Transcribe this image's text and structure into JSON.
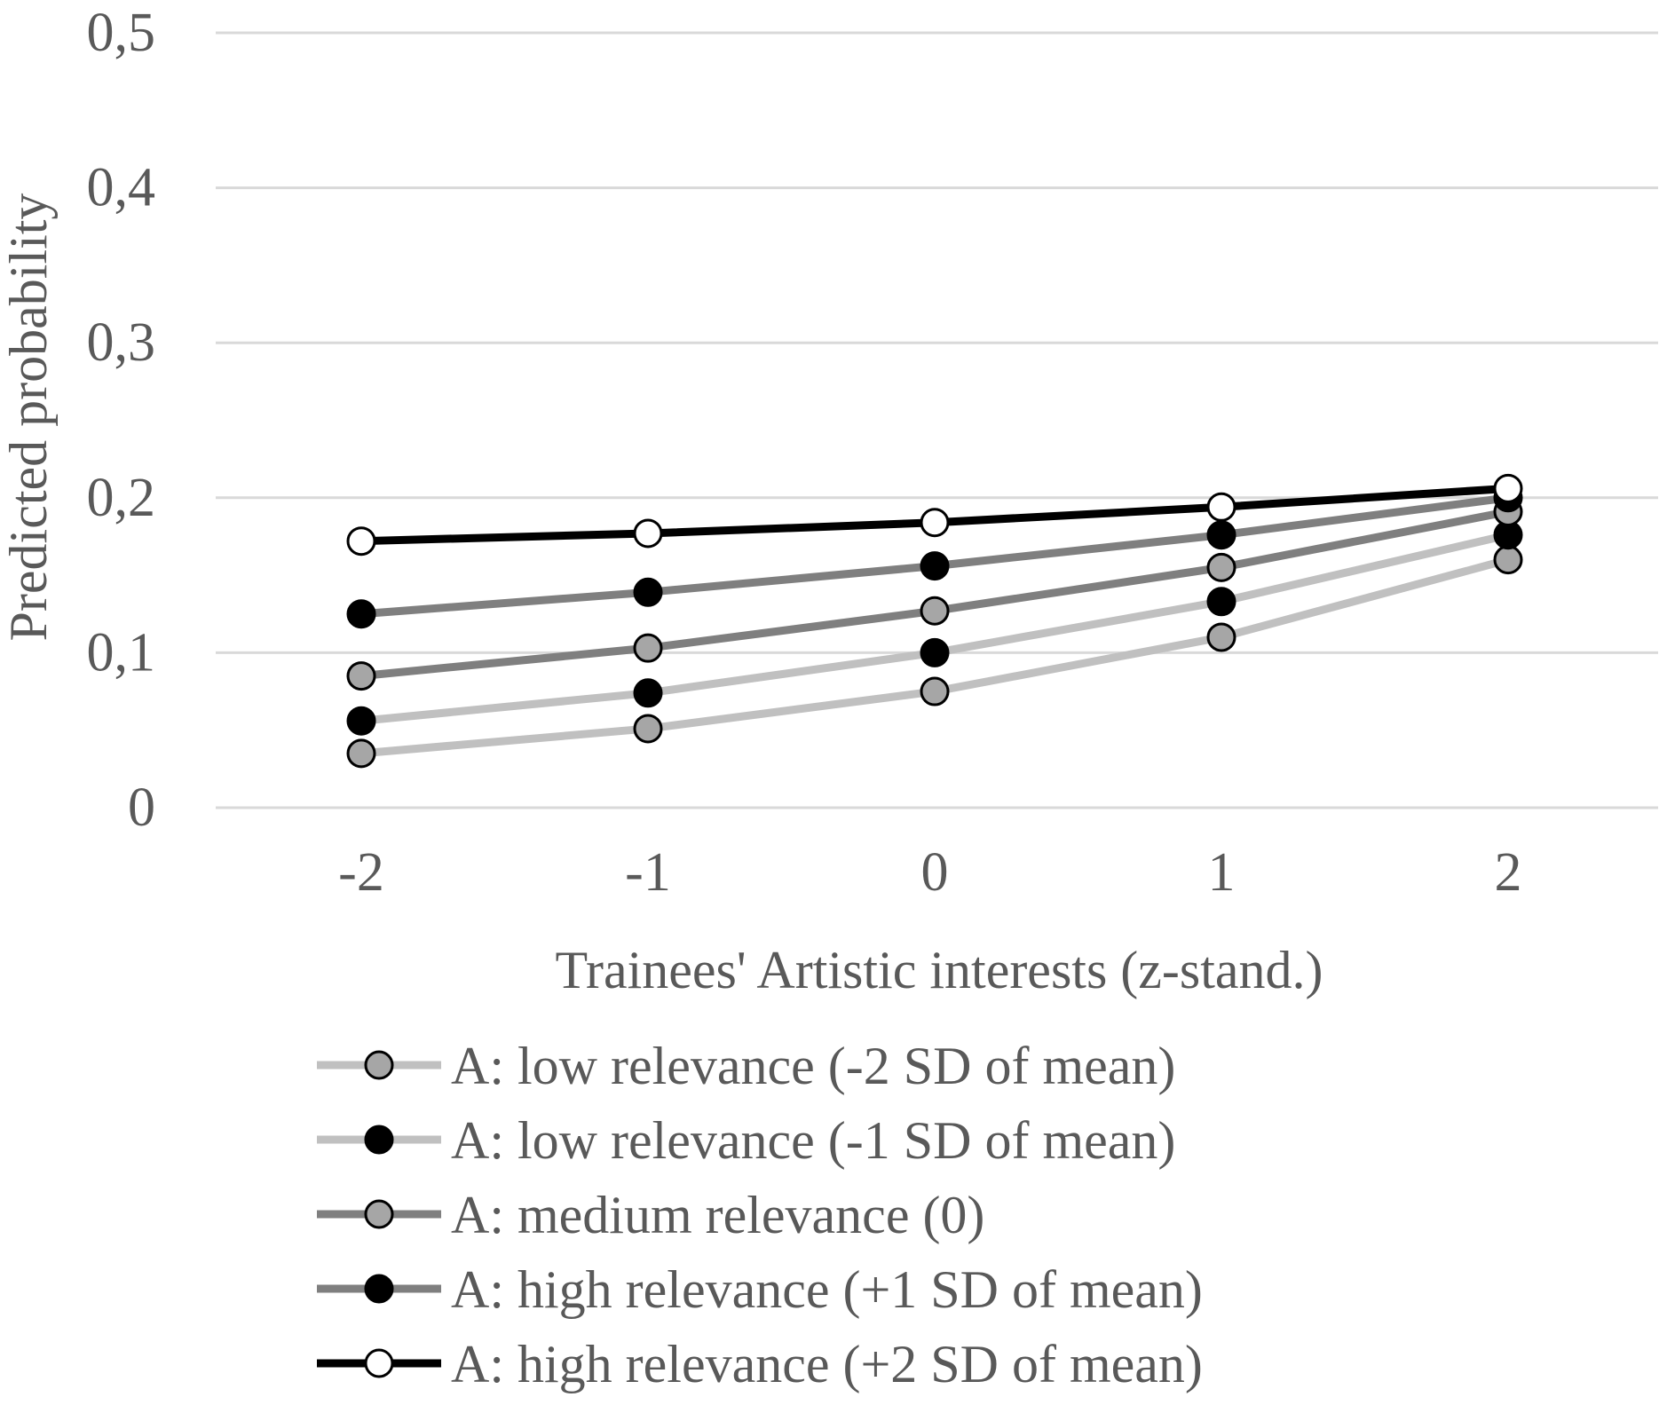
{
  "chart_data": {
    "type": "line",
    "title": "",
    "xlabel": "Trainees' Artistic interests (z-stand.)",
    "ylabel": "Predicted probability",
    "x": [
      "-2",
      "-1",
      "0",
      "1",
      "2"
    ],
    "y_ticks": [
      "0",
      "0,1",
      "0,2",
      "0,3",
      "0,4",
      "0,5"
    ],
    "ylim": [
      0,
      0.5
    ],
    "grid": true,
    "legend_position": "bottom",
    "series": [
      {
        "name": "A: low relevance (-2 SD of mean)",
        "values": [
          0.035,
          0.051,
          0.075,
          0.11,
          0.16
        ],
        "line_color": "#c0c0c0",
        "marker_color": "#a6a6a6"
      },
      {
        "name": "A: low relevance (-1 SD of mean)",
        "values": [
          0.056,
          0.074,
          0.1,
          0.133,
          0.176
        ],
        "line_color": "#c0c0c0",
        "marker_color": "#000000"
      },
      {
        "name": "A: medium relevance (0)",
        "values": [
          0.085,
          0.103,
          0.127,
          0.155,
          0.191
        ],
        "line_color": "#7f7f7f",
        "marker_color": "#a6a6a6"
      },
      {
        "name": "A: high relevance (+1 SD of mean)",
        "values": [
          0.125,
          0.139,
          0.156,
          0.176,
          0.2
        ],
        "line_color": "#7f7f7f",
        "marker_color": "#000000"
      },
      {
        "name": "A: high relevance (+2 SD of mean)",
        "values": [
          0.172,
          0.177,
          0.184,
          0.194,
          0.206
        ],
        "line_color": "#000000",
        "marker_color": "#ffffff"
      }
    ]
  }
}
